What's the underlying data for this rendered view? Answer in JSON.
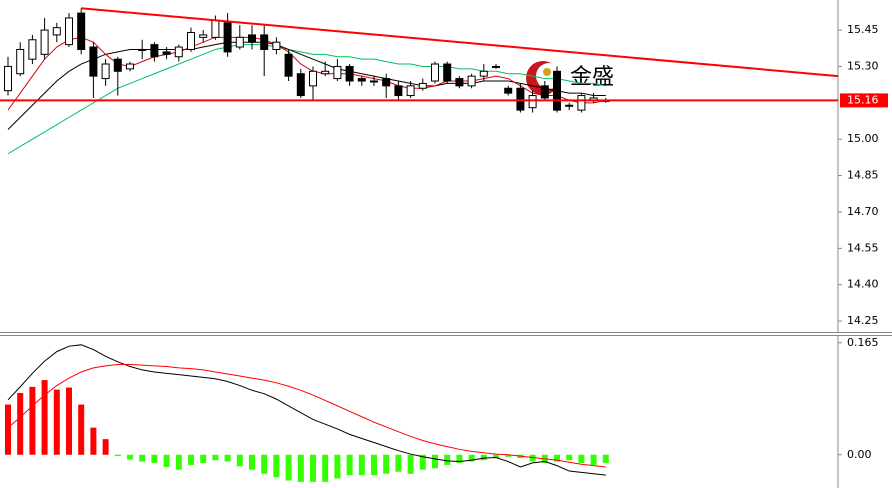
{
  "chart_data": [
    {
      "type": "candlestick",
      "open": [
        15.2,
        15.27,
        15.33,
        15.35,
        15.43,
        15.39,
        15.52,
        15.38,
        15.25,
        15.33,
        15.29,
        15.37,
        15.39,
        15.36,
        15.34,
        15.37,
        15.42,
        15.42,
        15.48,
        15.38,
        15.43,
        15.43,
        15.37,
        15.35,
        15.27,
        15.22,
        15.27,
        15.25,
        15.3,
        15.25,
        15.24,
        15.25,
        15.22,
        15.18,
        15.21,
        15.24,
        15.31,
        15.25,
        15.22,
        15.26,
        15.3,
        15.21,
        15.21,
        15.13,
        15.22,
        15.28,
        15.14,
        15.12,
        15.16,
        15.16
      ],
      "high": [
        15.34,
        15.4,
        15.43,
        15.5,
        15.48,
        15.52,
        15.54,
        15.4,
        15.33,
        15.34,
        15.32,
        15.41,
        15.4,
        15.38,
        15.39,
        15.46,
        15.45,
        15.51,
        15.52,
        15.47,
        15.47,
        15.47,
        15.42,
        15.37,
        15.29,
        15.3,
        15.32,
        15.33,
        15.31,
        15.26,
        15.26,
        15.27,
        15.24,
        15.24,
        15.25,
        15.32,
        15.32,
        15.26,
        15.27,
        15.31,
        15.31,
        15.22,
        15.23,
        15.2,
        15.24,
        15.3,
        15.15,
        15.19,
        15.19,
        15.17
      ],
      "low": [
        15.18,
        15.26,
        15.31,
        15.33,
        15.4,
        15.38,
        15.35,
        15.17,
        15.22,
        15.18,
        15.28,
        15.33,
        15.32,
        15.33,
        15.32,
        15.36,
        15.4,
        15.41,
        15.34,
        15.37,
        15.37,
        15.26,
        15.35,
        15.24,
        15.17,
        15.16,
        15.26,
        15.24,
        15.22,
        15.22,
        15.22,
        15.17,
        15.16,
        15.17,
        15.2,
        15.23,
        15.23,
        15.21,
        15.21,
        15.24,
        15.29,
        15.18,
        15.11,
        15.11,
        15.16,
        15.11,
        15.12,
        15.11,
        15.15,
        15.15
      ],
      "close": [
        15.3,
        15.37,
        15.41,
        15.45,
        15.46,
        15.5,
        15.37,
        15.26,
        15.31,
        15.28,
        15.31,
        15.37,
        15.34,
        15.35,
        15.38,
        15.44,
        15.43,
        15.49,
        15.36,
        15.42,
        15.4,
        15.37,
        15.4,
        15.26,
        15.18,
        15.28,
        15.28,
        15.3,
        15.24,
        15.24,
        15.24,
        15.22,
        15.18,
        15.22,
        15.23,
        15.31,
        15.24,
        15.22,
        15.26,
        15.28,
        15.3,
        15.19,
        15.12,
        15.18,
        15.17,
        15.12,
        15.14,
        15.18,
        15.17,
        15.16
      ],
      "up_color": "#ffffff",
      "down_color": "#000000",
      "series": [
        {
          "color": "#00c060",
          "values": [
            14.94,
            14.97,
            15.0,
            15.03,
            15.06,
            15.09,
            15.12,
            15.15,
            15.18,
            15.21,
            15.23,
            15.25,
            15.27,
            15.29,
            15.31,
            15.33,
            15.35,
            15.37,
            15.38,
            15.39,
            15.39,
            15.39,
            15.38,
            15.37,
            15.36,
            15.35,
            15.35,
            15.34,
            15.34,
            15.33,
            15.33,
            15.32,
            15.31,
            15.31,
            15.3,
            15.3,
            15.3,
            15.29,
            15.29,
            15.28,
            15.28,
            15.27,
            15.27,
            15.26,
            15.25,
            15.25,
            15.24,
            15.23,
            15.23,
            15.22
          ]
        },
        {
          "color": "#000000",
          "values": [
            15.04,
            15.09,
            15.14,
            15.19,
            15.24,
            15.28,
            15.31,
            15.33,
            15.35,
            15.36,
            15.37,
            15.37,
            15.37,
            15.37,
            15.37,
            15.37,
            15.38,
            15.39,
            15.4,
            15.4,
            15.4,
            15.4,
            15.39,
            15.37,
            15.35,
            15.33,
            15.31,
            15.29,
            15.28,
            15.27,
            15.26,
            15.25,
            15.24,
            15.23,
            15.22,
            15.22,
            15.23,
            15.23,
            15.23,
            15.24,
            15.24,
            15.24,
            15.23,
            15.22,
            15.21,
            15.2,
            15.19,
            15.19,
            15.18,
            15.18
          ]
        },
        {
          "color": "#e00000",
          "values": [
            15.12,
            15.19,
            15.26,
            15.33,
            15.38,
            15.41,
            15.42,
            15.4,
            15.35,
            15.31,
            15.3,
            15.32,
            15.34,
            15.35,
            15.36,
            15.38,
            15.4,
            15.42,
            15.42,
            15.42,
            15.42,
            15.41,
            15.39,
            15.36,
            15.31,
            15.28,
            15.27,
            15.27,
            15.27,
            15.26,
            15.25,
            15.24,
            15.22,
            15.21,
            15.21,
            15.22,
            15.24,
            15.24,
            15.24,
            15.25,
            15.26,
            15.25,
            15.22,
            15.19,
            15.18,
            15.18,
            15.16,
            15.15,
            15.15,
            15.16
          ]
        }
      ],
      "price_line": 15.16,
      "price_line_color": "#ff0000",
      "trendline": [
        15.54,
        15.26
      ],
      "trendline_color": "#ff0000",
      "watermark": "金盛",
      "ylim": [
        14.205,
        15.574
      ],
      "yticks": [
        15.45,
        {
          "value": 15.3,
          "label": "15.30"
        },
        {
          "value": 15,
          "label": "15.00"
        },
        14.85,
        {
          "value": 14.7,
          "label": "14.70"
        },
        14.55,
        {
          "value": 14.4,
          "label": "14.40"
        },
        14.25
      ]
    },
    {
      "type": "macd",
      "histogram": [
        0.074,
        0.091,
        0.1,
        0.11,
        0.096,
        0.099,
        0.074,
        0.04,
        0.023,
        -0.002,
        -0.007,
        -0.01,
        -0.012,
        -0.018,
        -0.022,
        -0.015,
        -0.012,
        -0.008,
        -0.01,
        -0.017,
        -0.022,
        -0.028,
        -0.033,
        -0.038,
        -0.04,
        -0.04,
        -0.04,
        -0.035,
        -0.03,
        -0.03,
        -0.03,
        -0.028,
        -0.025,
        -0.028,
        -0.022,
        -0.02,
        -0.015,
        -0.012,
        -0.01,
        -0.008,
        -0.005,
        -0.003,
        -0.005,
        -0.01,
        -0.012,
        -0.01,
        -0.008,
        -0.012,
        -0.015,
        -0.012
      ],
      "up_color": "#ff0000",
      "down_color": "#33ff00",
      "series": [
        {
          "color": "#000000",
          "values": [
            0.081,
            0.1,
            0.12,
            0.138,
            0.152,
            0.16,
            0.162,
            0.155,
            0.145,
            0.137,
            0.13,
            0.125,
            0.122,
            0.12,
            0.118,
            0.116,
            0.114,
            0.112,
            0.108,
            0.102,
            0.095,
            0.09,
            0.082,
            0.072,
            0.062,
            0.052,
            0.045,
            0.038,
            0.03,
            0.024,
            0.018,
            0.012,
            0.006,
            0.001,
            -0.003,
            -0.006,
            -0.009,
            -0.01,
            -0.008,
            -0.005,
            -0.004,
            -0.01,
            -0.018,
            -0.012,
            -0.01,
            -0.016,
            -0.024,
            -0.026,
            -0.028,
            -0.03
          ]
        },
        {
          "color": "#ff0000",
          "values": [
            0.04,
            0.055,
            0.072,
            0.088,
            0.102,
            0.113,
            0.122,
            0.128,
            0.131,
            0.133,
            0.133,
            0.132,
            0.131,
            0.13,
            0.128,
            0.127,
            0.125,
            0.122,
            0.119,
            0.116,
            0.113,
            0.11,
            0.106,
            0.101,
            0.095,
            0.088,
            0.08,
            0.072,
            0.064,
            0.056,
            0.048,
            0.041,
            0.034,
            0.027,
            0.021,
            0.016,
            0.012,
            0.008,
            0.005,
            0.003,
            0.001,
            0.0,
            -0.002,
            -0.004,
            -0.006,
            -0.008,
            -0.011,
            -0.014,
            -0.016,
            -0.018
          ]
        }
      ],
      "ylim": [
        -0.049,
        0.175
      ],
      "yticks": [
        0.165,
        {
          "value": 0,
          "label": "0.00"
        }
      ]
    }
  ]
}
